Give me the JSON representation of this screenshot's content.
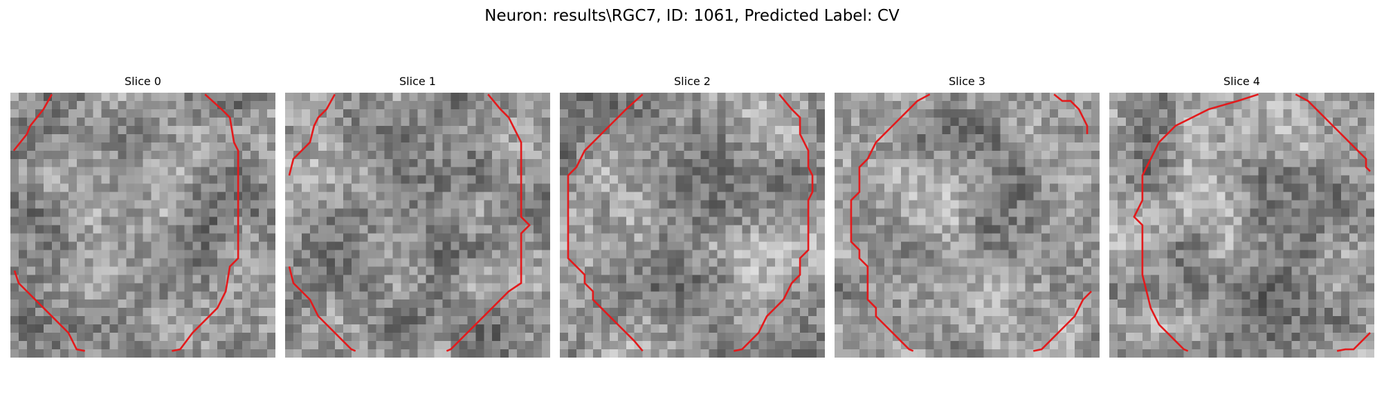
{
  "figure": {
    "title": "Neuron: results\\RGC7, ID: 1061, Predicted Label: CV"
  },
  "panels": [
    {
      "title": "Slice 0"
    },
    {
      "title": "Slice 1"
    },
    {
      "title": "Slice 2"
    },
    {
      "title": "Slice 3"
    },
    {
      "title": "Slice 4"
    }
  ],
  "colors": {
    "contour": "#e31a1c",
    "background": "#ffffff"
  }
}
